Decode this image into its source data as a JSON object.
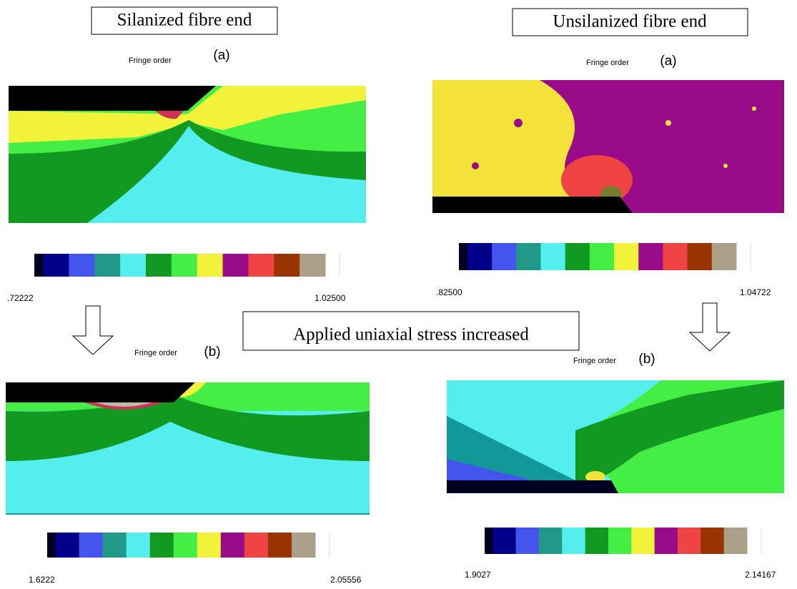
{
  "headers": {
    "left": "Silanized fibre end",
    "right": "Unsilanized fibre end"
  },
  "arrow_note": "Applied uniaxial stress increased",
  "panels": [
    {
      "fringe_label": "Fringe order",
      "label": "(a)",
      "scale_min": ".72222",
      "scale_max": "1.02500"
    },
    {
      "fringe_label": "Fringe order",
      "label": "(a)",
      "scale_min": ".82500",
      "scale_max": "1.04722"
    },
    {
      "fringe_label": "Fringe order",
      "label": "(b)",
      "scale_min": "1.6222",
      "scale_max": "2.05556"
    },
    {
      "fringe_label": "Fringe order",
      "label": "(b)",
      "scale_min": "1.9027",
      "scale_max": "2.14167"
    }
  ]
}
